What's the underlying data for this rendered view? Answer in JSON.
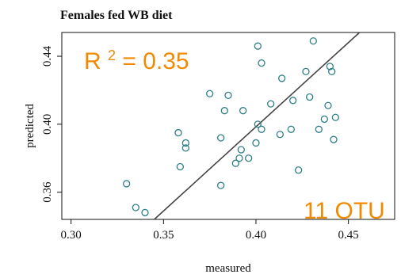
{
  "chart_data": {
    "type": "scatter",
    "title": "Females fed WB diet",
    "xlabel": "measured",
    "ylabel": "predicted",
    "xlim": [
      0.295,
      0.475
    ],
    "ylim": [
      0.344,
      0.454
    ],
    "x_ticks": [
      {
        "value": 0.3,
        "label": "0.30"
      },
      {
        "value": 0.35,
        "label": "0.35"
      },
      {
        "value": 0.4,
        "label": "0.40"
      },
      {
        "value": 0.45,
        "label": "0.45"
      }
    ],
    "y_ticks": [
      {
        "value": 0.36,
        "label": "0.36"
      },
      {
        "value": 0.4,
        "label": "0.40"
      },
      {
        "value": 0.44,
        "label": "0.44"
      }
    ],
    "grid": false,
    "point_color": "#2E7F86",
    "line_color": "#444444",
    "annotation_color": "#F08A00",
    "fit_line": {
      "x": [
        0.345,
        0.456
      ],
      "y": [
        0.344,
        0.454
      ]
    },
    "annotations": {
      "r2": {
        "prefix": "R",
        "superscript": "2",
        "suffix": " = 0.35"
      },
      "otu": "11 OTU"
    },
    "points": [
      {
        "x": 0.33,
        "y": 0.365
      },
      {
        "x": 0.335,
        "y": 0.351
      },
      {
        "x": 0.34,
        "y": 0.348
      },
      {
        "x": 0.358,
        "y": 0.395
      },
      {
        "x": 0.359,
        "y": 0.375
      },
      {
        "x": 0.362,
        "y": 0.389
      },
      {
        "x": 0.362,
        "y": 0.386
      },
      {
        "x": 0.375,
        "y": 0.418
      },
      {
        "x": 0.381,
        "y": 0.392
      },
      {
        "x": 0.381,
        "y": 0.364
      },
      {
        "x": 0.383,
        "y": 0.408
      },
      {
        "x": 0.385,
        "y": 0.417
      },
      {
        "x": 0.389,
        "y": 0.377
      },
      {
        "x": 0.391,
        "y": 0.38
      },
      {
        "x": 0.392,
        "y": 0.385
      },
      {
        "x": 0.393,
        "y": 0.408
      },
      {
        "x": 0.396,
        "y": 0.38
      },
      {
        "x": 0.4,
        "y": 0.389
      },
      {
        "x": 0.401,
        "y": 0.446
      },
      {
        "x": 0.401,
        "y": 0.4
      },
      {
        "x": 0.403,
        "y": 0.397
      },
      {
        "x": 0.403,
        "y": 0.436
      },
      {
        "x": 0.408,
        "y": 0.412
      },
      {
        "x": 0.413,
        "y": 0.394
      },
      {
        "x": 0.414,
        "y": 0.427
      },
      {
        "x": 0.419,
        "y": 0.397
      },
      {
        "x": 0.42,
        "y": 0.414
      },
      {
        "x": 0.423,
        "y": 0.373
      },
      {
        "x": 0.427,
        "y": 0.431
      },
      {
        "x": 0.429,
        "y": 0.416
      },
      {
        "x": 0.431,
        "y": 0.449
      },
      {
        "x": 0.434,
        "y": 0.397
      },
      {
        "x": 0.437,
        "y": 0.403
      },
      {
        "x": 0.439,
        "y": 0.411
      },
      {
        "x": 0.44,
        "y": 0.434
      },
      {
        "x": 0.441,
        "y": 0.431
      },
      {
        "x": 0.442,
        "y": 0.391
      },
      {
        "x": 0.443,
        "y": 0.404
      }
    ]
  }
}
